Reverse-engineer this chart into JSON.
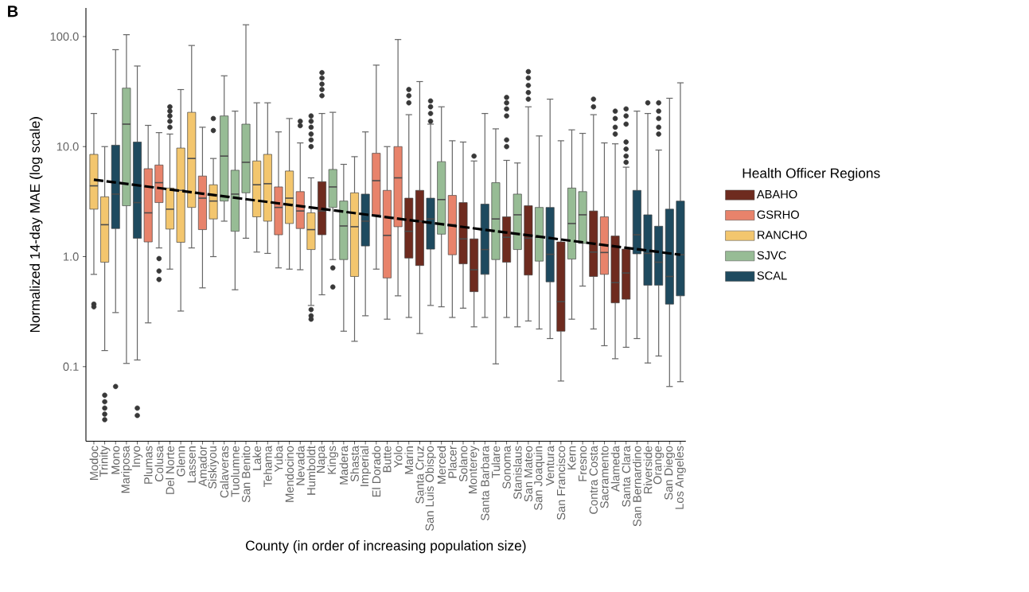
{
  "chart_data": {
    "type": "box",
    "title": "B",
    "xlabel": "County (in order of increasing population size)",
    "ylabel": "Normalized 14-day MAE (log scale)",
    "legend_title": "Health Officer Regions",
    "legend": "right",
    "log": "y",
    "grid": false,
    "ylim": [
      0.021,
      182
    ],
    "yticks": [
      {
        "value": 0.1,
        "label": "0.1"
      },
      {
        "value": 1,
        "label": "1.0"
      },
      {
        "value": 10,
        "label": "10.0"
      },
      {
        "value": 100,
        "label": "100.0"
      }
    ],
    "categories": [
      "Modoc",
      "Trinity",
      "Mono",
      "Mariposa",
      "Inyo",
      "Plumas",
      "Colusa",
      "Del Norte",
      "Glenn",
      "Lassen",
      "Amador",
      "Siskiyou",
      "Calaveras",
      "Tuolumne",
      "San Benito",
      "Lake",
      "Tehama",
      "Yuba",
      "Mendocino",
      "Nevada",
      "Humboldt",
      "Napa",
      "Kings",
      "Madera",
      "Shasta",
      "Imperial",
      "El Dorado",
      "Butte",
      "Yolo",
      "Marin",
      "Santa Cruz",
      "San Luis Obispo",
      "Merced",
      "Placer",
      "Solano",
      "Monterey",
      "Santa Barbara",
      "Tulare",
      "Sonoma",
      "Stanislaus",
      "San Mateo",
      "San Joaquin",
      "Ventura",
      "San Francisco",
      "Kern",
      "Fresno",
      "Contra Costa",
      "Sacramento",
      "Alameda",
      "Santa Clara",
      "San Bernardino",
      "Riverside",
      "Orange",
      "San Diego",
      "Los Angeles"
    ],
    "series": [
      {
        "name": "ABAHO",
        "color": "#6e2b1f",
        "boxes": [
          null,
          null,
          null,
          null,
          null,
          null,
          null,
          null,
          null,
          null,
          null,
          null,
          null,
          null,
          null,
          null,
          null,
          null,
          null,
          null,
          null,
          {
            "low": 0.45,
            "q1": 1.58,
            "median": 2.6,
            "q3": 4.8,
            "high": 20,
            "outliers": [
              47,
              42,
              37,
              33,
              29
            ]
          },
          null,
          null,
          null,
          null,
          null,
          null,
          null,
          {
            "low": 0.28,
            "q1": 0.97,
            "median": 1.7,
            "q3": 3.4,
            "high": 19.5,
            "outliers": [
              33,
              29,
              25
            ]
          },
          {
            "low": 0.2,
            "q1": 0.83,
            "median": 2.1,
            "q3": 4.0,
            "high": 39
          },
          null,
          null,
          null,
          {
            "low": 0.34,
            "q1": 0.86,
            "median": 1.45,
            "q3": 3.1,
            "high": 11
          },
          {
            "low": 0.23,
            "q1": 0.48,
            "median": 0.76,
            "q3": 1.45,
            "high": 7.4,
            "outliers": [
              8.2
            ]
          },
          null,
          null,
          {
            "low": 0.28,
            "q1": 0.89,
            "median": 1.5,
            "q3": 2.3,
            "high": 7.5,
            "outliers": [
              28,
              25,
              22,
              19,
              11.5,
              10
            ]
          },
          null,
          {
            "low": 0.26,
            "q1": 0.68,
            "median": 1.47,
            "q3": 2.9,
            "high": 23,
            "outliers": [
              48,
              42,
              36,
              31,
              27
            ]
          },
          null,
          null,
          {
            "low": 0.074,
            "q1": 0.21,
            "median": 0.39,
            "q3": 1.36,
            "high": 11.3
          },
          null,
          null,
          {
            "low": 0.22,
            "q1": 0.66,
            "median": 1.1,
            "q3": 2.6,
            "high": 19.5,
            "outliers": [
              27,
              23
            ]
          },
          null,
          {
            "low": 0.118,
            "q1": 0.38,
            "median": 0.58,
            "q3": 1.54,
            "high": 10.6,
            "outliers": [
              21,
              18,
              15,
              13
            ]
          },
          {
            "low": 0.15,
            "q1": 0.41,
            "median": 0.71,
            "q3": 1.17,
            "high": 6.5,
            "outliers": [
              22,
              19,
              16,
              11,
              9.5,
              8.2,
              7.2
            ]
          },
          null,
          null,
          null,
          null,
          null
        ]
      },
      {
        "name": "GSRHO",
        "color": "#e8836b",
        "boxes": [
          null,
          null,
          null,
          null,
          null,
          {
            "low": 0.25,
            "q1": 1.36,
            "median": 2.5,
            "q3": 6.3,
            "high": 15.6
          },
          {
            "low": 1.2,
            "q1": 3.1,
            "median": 4.7,
            "q3": 6.8,
            "high": 13.4,
            "outliers": [
              0.96,
              0.74,
              0.62
            ]
          },
          null,
          null,
          null,
          {
            "low": 0.52,
            "q1": 1.76,
            "median": 3.4,
            "q3": 5.4,
            "high": 15
          },
          null,
          null,
          null,
          null,
          null,
          null,
          {
            "low": 0.79,
            "q1": 1.58,
            "median": 2.8,
            "q3": 4.3,
            "high": 13.6
          },
          null,
          {
            "low": 0.76,
            "q1": 1.8,
            "median": 2.6,
            "q3": 3.9,
            "high": 10.8,
            "outliers": [
              17,
              15.5
            ]
          },
          null,
          null,
          null,
          null,
          null,
          null,
          {
            "low": 0.77,
            "q1": 2.4,
            "median": 4.9,
            "q3": 8.7,
            "high": 55
          },
          {
            "low": 0.27,
            "q1": 0.64,
            "median": 1.56,
            "q3": 4.0,
            "high": 10
          },
          {
            "low": 0.44,
            "q1": 1.87,
            "median": 5.2,
            "q3": 10,
            "high": 94
          },
          null,
          null,
          null,
          null,
          {
            "low": 0.28,
            "q1": 1.04,
            "median": 1.95,
            "q3": 3.6,
            "high": 11.3
          },
          null,
          null,
          null,
          null,
          null,
          null,
          null,
          null,
          null,
          null,
          null,
          null,
          null,
          {
            "low": 0.155,
            "q1": 0.69,
            "median": 1.09,
            "q3": 2.3,
            "high": 10.8
          },
          null,
          null,
          null,
          null,
          null,
          null,
          null
        ]
      },
      {
        "name": "RANCHO",
        "color": "#f3c66e",
        "boxes": [
          {
            "low": 0.69,
            "q1": 2.7,
            "median": 4.4,
            "q3": 8.5,
            "high": 20,
            "outliers": [
              0.37,
              0.35
            ]
          },
          {
            "low": 0.14,
            "q1": 0.89,
            "median": 1.95,
            "q3": 3.5,
            "high": 10,
            "outliers": [
              0.055,
              0.048,
              0.042,
              0.037,
              0.033
            ]
          },
          null,
          null,
          null,
          null,
          null,
          {
            "low": 0.77,
            "q1": 1.78,
            "median": 2.7,
            "q3": 4.2,
            "high": 13,
            "outliers": [
              23,
              21,
              19,
              17,
              15
            ]
          },
          {
            "low": 0.32,
            "q1": 1.35,
            "median": 4.0,
            "q3": 9.7,
            "high": 33
          },
          {
            "low": 1.2,
            "q1": 2.8,
            "median": 7.8,
            "q3": 20.5,
            "high": 83
          },
          null,
          {
            "low": 1.0,
            "q1": 2.2,
            "median": 3.2,
            "q3": 4.5,
            "high": 7.8,
            "outliers": [
              18,
              14
            ]
          },
          null,
          null,
          null,
          {
            "low": 1.1,
            "q1": 2.3,
            "median": 4.5,
            "q3": 7.4,
            "high": 25
          },
          {
            "low": 1.07,
            "q1": 2.1,
            "median": 4.6,
            "q3": 8.5,
            "high": 25
          },
          null,
          {
            "low": 0.77,
            "q1": 2.0,
            "median": 3.4,
            "q3": 6.0,
            "high": 18
          },
          null,
          {
            "low": 0.36,
            "q1": 1.16,
            "median": 1.76,
            "q3": 2.5,
            "high": 5.2,
            "outliers": [
              19,
              17,
              15,
              13,
              11.5,
              10,
              0.33,
              0.29,
              0.27
            ]
          },
          null,
          null,
          null,
          {
            "low": 0.17,
            "q1": 0.66,
            "median": 1.87,
            "q3": 3.8,
            "high": 8.1
          },
          null,
          null,
          null,
          null,
          null,
          null,
          null,
          null,
          null,
          null,
          null,
          null,
          null,
          null,
          null,
          null,
          null,
          null,
          null,
          null,
          null,
          null,
          null,
          null,
          null,
          null,
          null,
          null,
          null,
          null
        ]
      },
      {
        "name": "SJVC",
        "color": "#97bc95",
        "boxes": [
          null,
          null,
          null,
          {
            "low": 0.107,
            "q1": 2.9,
            "median": 16,
            "q3": 34,
            "high": 104
          },
          null,
          null,
          null,
          null,
          null,
          null,
          null,
          null,
          {
            "low": 2.1,
            "q1": 3.2,
            "median": 8.2,
            "q3": 19,
            "high": 44
          },
          {
            "low": 0.5,
            "q1": 1.7,
            "median": 3.7,
            "q3": 6.1,
            "high": 21
          },
          {
            "low": 1.47,
            "q1": 3.8,
            "median": 7.2,
            "q3": 16,
            "high": 128
          },
          null,
          null,
          null,
          null,
          null,
          null,
          null,
          {
            "low": 0.94,
            "q1": 2.8,
            "median": 4.3,
            "q3": 6.2,
            "high": 20.5,
            "outliers": [
              0.79,
              0.53
            ]
          },
          {
            "low": 0.21,
            "q1": 0.94,
            "median": 1.9,
            "q3": 3.2,
            "high": 6.9
          },
          null,
          null,
          null,
          null,
          null,
          null,
          null,
          null,
          {
            "low": 0.35,
            "q1": 1.6,
            "median": 3.3,
            "q3": 7.3,
            "high": 23
          },
          null,
          null,
          null,
          null,
          {
            "low": 0.106,
            "q1": 0.94,
            "median": 2.2,
            "q3": 4.7,
            "high": 14.5
          },
          null,
          {
            "low": 0.23,
            "q1": 1.16,
            "median": 2.4,
            "q3": 3.7,
            "high": 7.1
          },
          null,
          {
            "low": 0.22,
            "q1": 0.91,
            "median": 1.5,
            "q3": 2.8,
            "high": 12.5
          },
          null,
          null,
          {
            "low": 0.27,
            "q1": 0.95,
            "median": 2.0,
            "q3": 4.2,
            "high": 14.2
          },
          {
            "low": 0.54,
            "q1": 1.32,
            "median": 2.4,
            "q3": 3.9,
            "high": 13.2
          },
          null,
          null,
          null,
          null,
          null,
          null,
          null,
          null,
          null
        ]
      },
      {
        "name": "SCAL",
        "color": "#1e4a5f",
        "boxes": [
          null,
          null,
          {
            "low": 0.31,
            "q1": 1.8,
            "median": 3.7,
            "q3": 10.3,
            "high": 76,
            "outliers": [
              0.066
            ]
          },
          null,
          {
            "low": 0.115,
            "q1": 1.47,
            "median": 3.1,
            "q3": 11,
            "high": 54,
            "outliers": [
              0.042,
              0.036
            ]
          },
          null,
          null,
          null,
          null,
          null,
          null,
          null,
          null,
          null,
          null,
          null,
          null,
          null,
          null,
          null,
          null,
          null,
          null,
          null,
          null,
          {
            "low": 0.29,
            "q1": 1.25,
            "median": 2.1,
            "q3": 3.7,
            "high": 13.6
          },
          null,
          null,
          null,
          null,
          null,
          {
            "low": 0.36,
            "q1": 1.17,
            "median": 2.2,
            "q3": 3.4,
            "high": 16,
            "outliers": [
              26,
              23,
              20,
              17
            ]
          },
          null,
          null,
          null,
          null,
          {
            "low": 0.28,
            "q1": 0.69,
            "median": 1.16,
            "q3": 3.0,
            "high": 20
          },
          null,
          null,
          null,
          null,
          null,
          {
            "low": 0.18,
            "q1": 0.59,
            "median": 1.05,
            "q3": 2.8,
            "high": 27
          },
          null,
          null,
          null,
          null,
          null,
          null,
          null,
          {
            "low": 0.18,
            "q1": 1.06,
            "median": 1.58,
            "q3": 4.0,
            "high": 21
          },
          {
            "low": 0.108,
            "q1": 0.55,
            "median": 1.07,
            "q3": 2.4,
            "high": 20,
            "outliers": [
              25
            ]
          },
          {
            "low": 0.125,
            "q1": 0.55,
            "median": 0.89,
            "q3": 1.89,
            "high": 9.3,
            "outliers": [
              25,
              21,
              18,
              15,
              13
            ]
          },
          {
            "low": 0.066,
            "q1": 0.37,
            "median": 0.66,
            "q3": 2.7,
            "high": 27.5
          },
          {
            "low": 0.073,
            "q1": 0.44,
            "median": 1.04,
            "q3": 3.2,
            "high": 38
          }
        ]
      },
      {
        "type": "line",
        "color": "#000000",
        "line_style": "dashed",
        "x": [
          "Modoc",
          "Los Angeles"
        ],
        "values": [
          5.0,
          1.04
        ]
      }
    ]
  }
}
